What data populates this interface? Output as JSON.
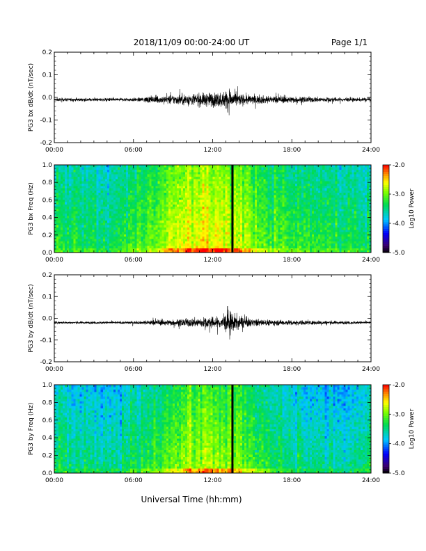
{
  "header": {
    "title": "2018/11/09  00:00-24:00 UT",
    "page": "Page 1/1"
  },
  "footer": {
    "xlabel": "Universal Time (hh:mm)"
  },
  "colors": {
    "trace": "#000000",
    "marker_line": "#000000"
  },
  "chart_data": [
    {
      "type": "line",
      "name": "bx-derivative",
      "ylabel": "PG3 bx dB/dt (nT/sec)",
      "xlim": [
        0,
        24
      ],
      "ylim": [
        -0.2,
        0.2
      ],
      "x_tick_labels": [
        "00:00",
        "06:00",
        "12:00",
        "18:00",
        "24:00"
      ],
      "y_tick_labels": [
        "-0.2",
        "-0.1",
        "0.0",
        "0.1",
        "0.2"
      ],
      "baseline": -0.01,
      "envelope": {
        "hours": [
          0,
          4,
          6.5,
          7,
          8,
          9,
          10,
          11,
          12,
          12.8,
          13.2,
          13.6,
          14,
          14.5,
          15,
          16,
          17,
          18,
          20,
          22,
          24
        ],
        "amplitude": [
          0.012,
          0.012,
          0.015,
          0.025,
          0.03,
          0.035,
          0.045,
          0.05,
          0.055,
          0.06,
          0.09,
          0.06,
          0.045,
          0.04,
          0.035,
          0.03,
          0.028,
          0.025,
          0.02,
          0.015,
          0.012
        ]
      }
    },
    {
      "type": "heatmap",
      "name": "bx-spectrogram",
      "ylabel": "PG3 bx Freq (Hz)",
      "xlim": [
        0,
        24
      ],
      "ylim": [
        0,
        1
      ],
      "x_tick_labels": [
        "00:00",
        "06:00",
        "12:00",
        "18:00",
        "24:00"
      ],
      "y_tick_labels": [
        "0.0",
        "0.2",
        "0.4",
        "0.6",
        "0.8",
        "1.0"
      ],
      "colorbar": {
        "label": "Log10 Power",
        "range": [
          -5,
          -2
        ],
        "tick_labels": [
          "-2.0",
          "-3.0",
          "-4.0",
          "-5.0"
        ]
      },
      "marker_hour": 13.5,
      "power_profile": {
        "hours": [
          0,
          2,
          4,
          6,
          8,
          10,
          11,
          12,
          13,
          14,
          15,
          16,
          18,
          20,
          22,
          24
        ],
        "log10_power": [
          -3.4,
          -3.4,
          -3.5,
          -3.3,
          -2.95,
          -2.75,
          -2.7,
          -2.7,
          -2.75,
          -2.85,
          -3.0,
          -3.15,
          -3.3,
          -3.35,
          -3.4,
          -3.45
        ]
      }
    },
    {
      "type": "line",
      "name": "by-derivative",
      "ylabel": "PG3 by dB/dt (nT/sec)",
      "xlim": [
        0,
        24
      ],
      "ylim": [
        -0.2,
        0.2
      ],
      "x_tick_labels": [
        "00:00",
        "06:00",
        "12:00",
        "18:00",
        "24:00"
      ],
      "y_tick_labels": [
        "-0.2",
        "-0.1",
        "0.0",
        "0.1",
        "0.2"
      ],
      "baseline": -0.02,
      "envelope": {
        "hours": [
          0,
          4,
          6.5,
          7,
          8,
          9,
          10,
          11,
          12,
          12.8,
          13.2,
          13.6,
          14,
          14.5,
          15,
          16,
          17,
          18,
          20,
          22,
          24
        ],
        "amplitude": [
          0.01,
          0.01,
          0.012,
          0.02,
          0.022,
          0.025,
          0.032,
          0.04,
          0.045,
          0.05,
          0.1,
          0.075,
          0.05,
          0.04,
          0.03,
          0.025,
          0.022,
          0.02,
          0.016,
          0.013,
          0.01
        ]
      }
    },
    {
      "type": "heatmap",
      "name": "by-spectrogram",
      "ylabel": "PG3 by Freq (Hz)",
      "xlim": [
        0,
        24
      ],
      "ylim": [
        0,
        1
      ],
      "x_tick_labels": [
        "00:00",
        "06:00",
        "12:00",
        "18:00",
        "24:00"
      ],
      "y_tick_labels": [
        "0.0",
        "0.2",
        "0.4",
        "0.6",
        "0.8",
        "1.0"
      ],
      "colorbar": {
        "label": "Log10 Power",
        "range": [
          -5,
          -2
        ],
        "tick_labels": [
          "-2.0",
          "-3.0",
          "-4.0",
          "-5.0"
        ]
      },
      "marker_hour": 13.5,
      "power_profile": {
        "hours": [
          0,
          2,
          4,
          6,
          8,
          10,
          11,
          12,
          13,
          14,
          15,
          16,
          18,
          20,
          22,
          24
        ],
        "log10_power": [
          -3.5,
          -3.6,
          -3.7,
          -3.45,
          -3.2,
          -3.0,
          -2.95,
          -2.95,
          -3.0,
          -3.1,
          -3.25,
          -3.4,
          -3.55,
          -3.65,
          -3.7,
          -3.55
        ]
      }
    }
  ]
}
